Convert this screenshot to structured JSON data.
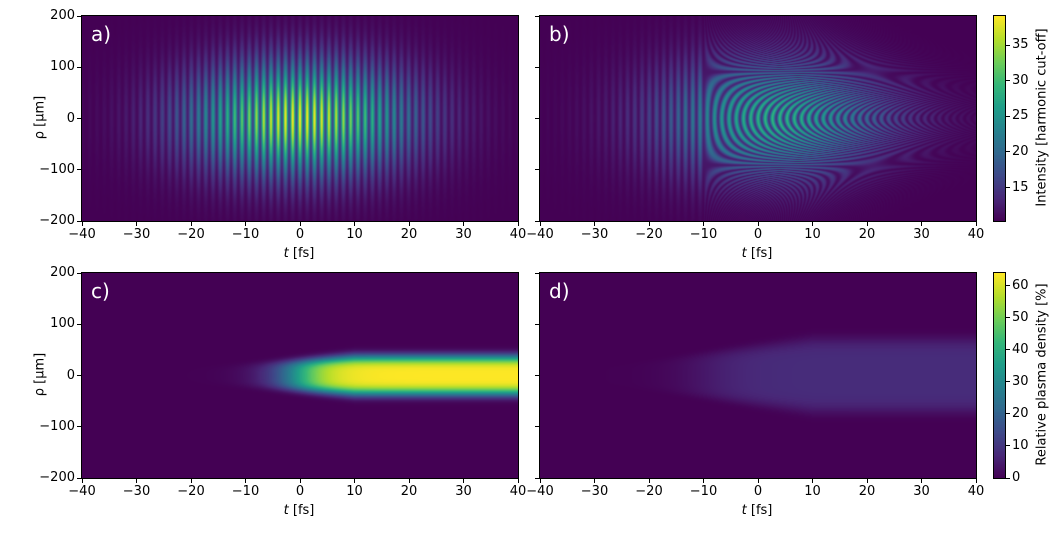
{
  "chart_data": [
    {
      "type": "heatmap",
      "panel_label": "a)",
      "xlabel_var": "t",
      "xlabel_unit": " [fs]",
      "ylabel": "ρ [µm]",
      "xlim": [
        -40,
        40
      ],
      "ylim": [
        -200,
        200
      ],
      "xticks": [
        -40,
        -30,
        -20,
        -10,
        0,
        10,
        20,
        30,
        40
      ],
      "yticks": [
        -200,
        -100,
        0,
        100,
        200
      ],
      "quantity": "Intensity [harmonic cut-off]",
      "model": {
        "kind": "fringes",
        "peak": 39,
        "base": 10.3,
        "t_center": 0,
        "t_sigma": 14,
        "rho_sigma": 75,
        "fringe_period_fs": 1.33,
        "curvature": 0,
        "rho_shrink": 0
      }
    },
    {
      "type": "heatmap",
      "panel_label": "b)",
      "xlabel_var": "t",
      "xlabel_unit": " [fs]",
      "xlim": [
        -40,
        40
      ],
      "ylim": [
        -200,
        200
      ],
      "xticks": [
        -40,
        -30,
        -20,
        -10,
        0,
        10,
        20,
        30,
        40
      ],
      "yticks": [
        -200,
        -100,
        0,
        100,
        200
      ],
      "quantity": "Intensity [harmonic cut-off]",
      "model": {
        "kind": "fringes",
        "peak": 29,
        "base": 10.3,
        "t_center": 3,
        "t_sigma": 15,
        "rho_sigma": 80,
        "fringe_period_fs": 1.33,
        "curvature": 0.00012,
        "rho_shrink": 0.012
      }
    },
    {
      "type": "heatmap",
      "panel_label": "c)",
      "xlabel_var": "t",
      "xlabel_unit": " [fs]",
      "ylabel": "ρ [µm]",
      "xlim": [
        -40,
        40
      ],
      "ylim": [
        -200,
        200
      ],
      "xticks": [
        -40,
        -30,
        -20,
        -10,
        0,
        10,
        20,
        30,
        40
      ],
      "yticks": [
        -200,
        -100,
        0,
        100,
        200
      ],
      "quantity": "Relative plasma density [%]",
      "model": {
        "kind": "plasma",
        "peak": 64,
        "t_rise": -1,
        "rise_width": 6,
        "rho_width": 38,
        "order": 4
      }
    },
    {
      "type": "heatmap",
      "panel_label": "d)",
      "xlabel_var": "t",
      "xlabel_unit": " [fs]",
      "xlim": [
        -40,
        40
      ],
      "ylim": [
        -200,
        200
      ],
      "xticks": [
        -40,
        -30,
        -20,
        -10,
        0,
        10,
        20,
        30,
        40
      ],
      "yticks": [
        -200,
        -100,
        0,
        100,
        200
      ],
      "quantity": "Relative plasma density [%]",
      "model": {
        "kind": "plasma",
        "peak": 8,
        "t_rise": -10,
        "rise_width": 8,
        "rho_width": 72,
        "order": 6
      }
    }
  ],
  "colorbars": [
    {
      "label": "Intensity [harmonic cut-off]",
      "range": [
        10.3,
        39.1
      ],
      "ticks": [
        15,
        20,
        25,
        30,
        35
      ]
    },
    {
      "label": "Relative plasma density [%]",
      "range": [
        0,
        64
      ],
      "ticks": [
        0,
        10,
        20,
        30,
        40,
        50,
        60
      ]
    }
  ],
  "colormap": [
    "#440154",
    "#482878",
    "#3e4989",
    "#31688e",
    "#26828e",
    "#1f9e89",
    "#35b779",
    "#6ece58",
    "#b5de2b",
    "#fde725"
  ]
}
